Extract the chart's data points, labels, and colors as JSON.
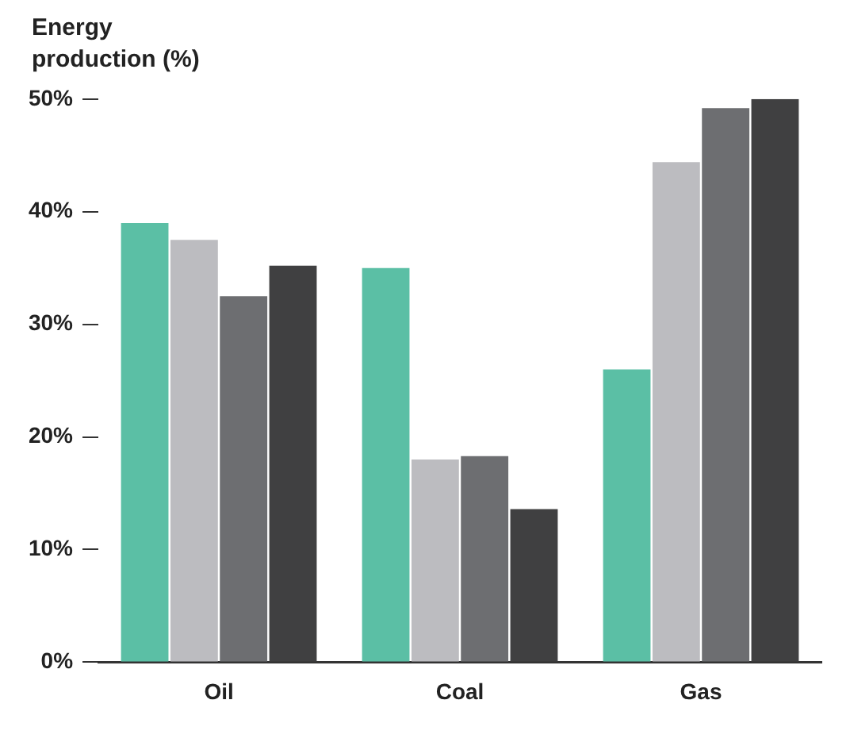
{
  "chart_data": {
    "type": "bar",
    "ylabel": "Energy production (%)",
    "categories": [
      "Oil",
      "Coal",
      "Gas"
    ],
    "series": [
      {
        "color": "#5bbfa5",
        "values": [
          39,
          35,
          26
        ]
      },
      {
        "color": "#bcbcc0",
        "values": [
          37.5,
          18,
          44.4
        ]
      },
      {
        "color": "#6d6e71",
        "values": [
          32.5,
          18.3,
          49.2
        ]
      },
      {
        "color": "#404041",
        "values": [
          35.2,
          13.6,
          50
        ]
      }
    ],
    "ylim": [
      0,
      50
    ],
    "yticks": [
      {
        "value": 0,
        "label": "0%"
      },
      {
        "value": 10,
        "label": "10%"
      },
      {
        "value": 20,
        "label": "20%"
      },
      {
        "value": 30,
        "label": "30%"
      },
      {
        "value": 40,
        "label": "40%"
      },
      {
        "value": 50,
        "label": "50%"
      }
    ],
    "grid": false,
    "legend": false
  }
}
